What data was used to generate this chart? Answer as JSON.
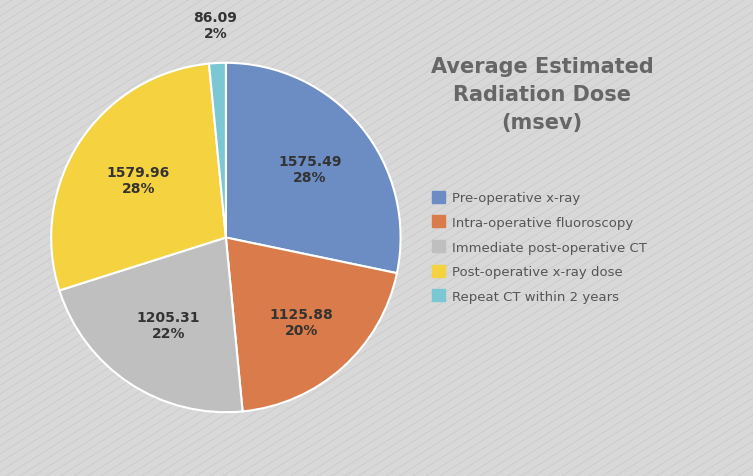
{
  "title": "Average Estimated\nRadiation Dose\n(msev)",
  "slices": [
    1575.49,
    1125.88,
    1205.31,
    1579.96,
    86.09
  ],
  "labels": [
    "Pre-operative x-ray",
    "Intra-operative fluoroscopy",
    "Immediate post-operative CT",
    "Post-operative x-ray dose",
    "Repeat CT within 2 years"
  ],
  "colors": [
    "#6B8DC4",
    "#D97B4A",
    "#BFBFBF",
    "#F5D240",
    "#7BC8D4"
  ],
  "background_color": "#D8D8D8",
  "title_color": "#666666",
  "legend_text_color": "#555555",
  "label_color": "#333333",
  "label_radii": [
    0.62,
    0.65,
    0.6,
    0.6,
    1.22
  ],
  "wedge_labels_top": [
    "1575.49",
    "1125.88",
    "1205.31",
    "1579.96",
    "86.09"
  ],
  "wedge_labels_bot": [
    "28%",
    "20%",
    "22%",
    "28%",
    "2%"
  ]
}
